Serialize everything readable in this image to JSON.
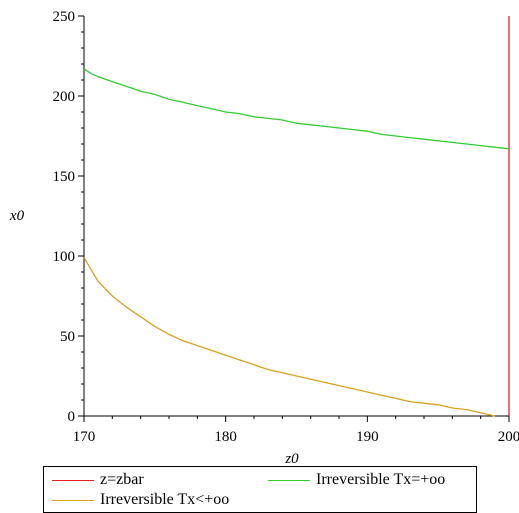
{
  "chart_data": {
    "type": "line",
    "title": "",
    "xlabel": "z0",
    "ylabel": "x0",
    "xlim": [
      170,
      200
    ],
    "ylim": [
      0,
      250
    ],
    "x_ticks": [
      170,
      180,
      190,
      200
    ],
    "y_ticks": [
      0,
      50,
      100,
      150,
      200,
      250
    ],
    "grid": false,
    "legend_position": "bottom",
    "series": [
      {
        "name": "z=zbar",
        "color": "#e8201c",
        "x": [
          200,
          200
        ],
        "y": [
          0,
          250
        ]
      },
      {
        "name": "Irreversible Tx=+oo",
        "color": "#33cc33",
        "x": [
          170,
          170.5,
          171,
          172,
          173,
          174,
          175,
          176,
          177,
          178,
          179,
          180,
          181,
          182,
          183,
          184,
          185,
          186,
          187,
          188,
          189,
          190,
          191,
          192,
          193,
          194,
          195,
          196,
          197,
          198,
          199,
          200
        ],
        "y": [
          217,
          214,
          212,
          209,
          206,
          203,
          201,
          198,
          196,
          194,
          192,
          190,
          189,
          187,
          186,
          185,
          183,
          182,
          181,
          180,
          179,
          178,
          176,
          175,
          174,
          173,
          172,
          171,
          170,
          169,
          168,
          167
        ]
      },
      {
        "name": "Irreversible Tx<+oo",
        "color": "#d9a21b",
        "x": [
          170,
          171,
          172,
          173,
          174,
          175,
          176,
          177,
          178,
          179,
          180,
          181,
          182,
          183,
          184,
          185,
          186,
          187,
          188,
          189,
          190,
          191,
          192,
          193,
          194,
          195,
          196,
          197,
          198,
          199
        ],
        "y": [
          99,
          84,
          75,
          68,
          62,
          56,
          51,
          47,
          44,
          41,
          38,
          35,
          32,
          29,
          27,
          25,
          23,
          21,
          19,
          17,
          15,
          13,
          11,
          9,
          8,
          7,
          5,
          4,
          2,
          0
        ]
      }
    ]
  },
  "legend": {
    "items": [
      "z=zbar",
      "Irreversible Tx=+oo",
      "Irreversible Tx<+oo"
    ]
  }
}
